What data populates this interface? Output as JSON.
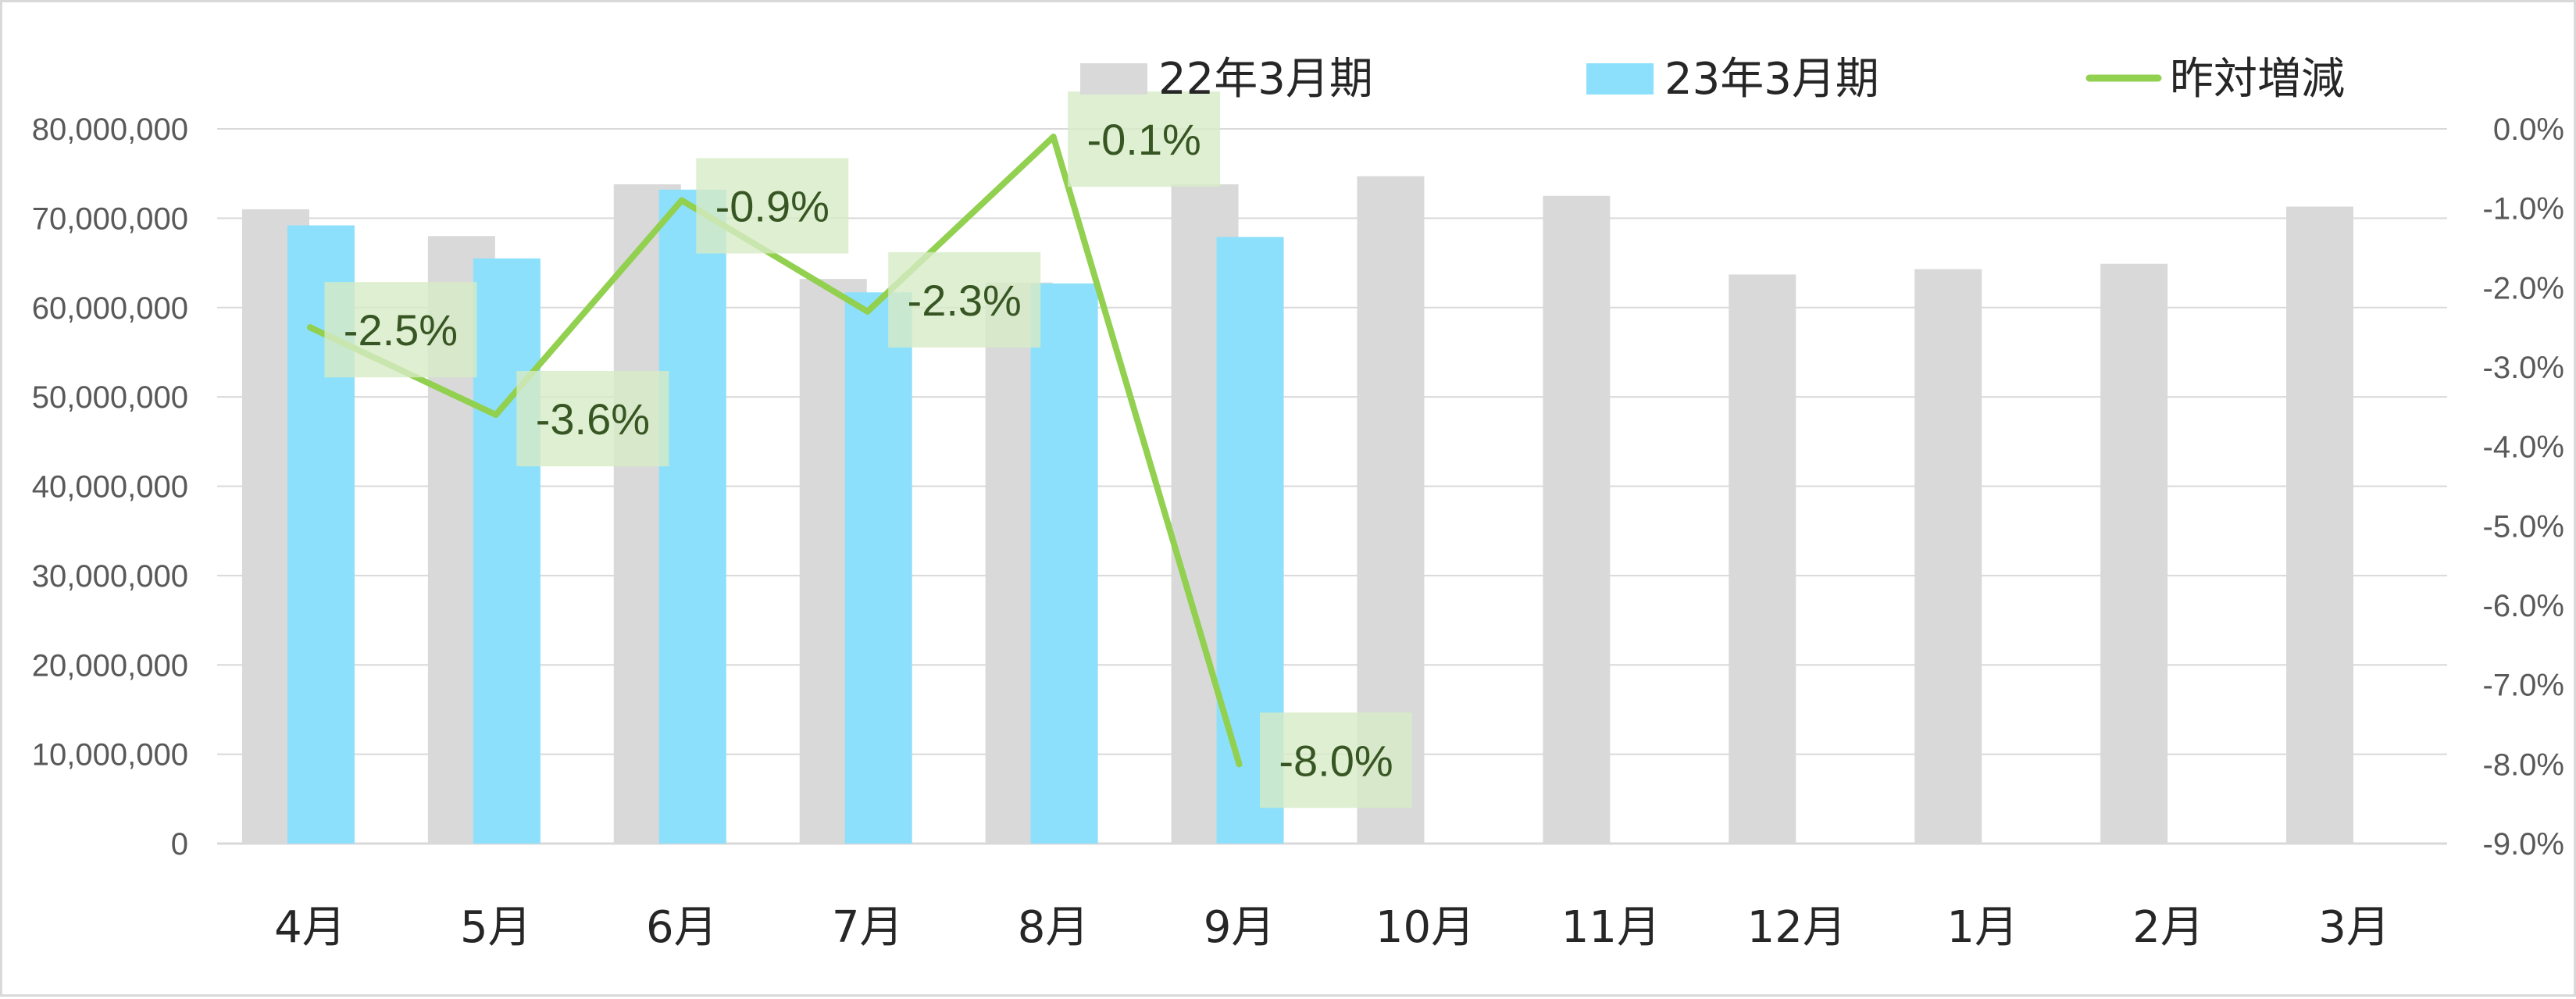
{
  "chart_data": {
    "type": "bar",
    "categories": [
      "4月",
      "5月",
      "6月",
      "7月",
      "8月",
      "9月",
      "10月",
      "11月",
      "12月",
      "1月",
      "2月",
      "3月"
    ],
    "series": [
      {
        "name": "22年3月期",
        "type": "bar",
        "axis": "left",
        "color": "#d9d9d9",
        "values": [
          71000000,
          68000000,
          73800000,
          63200000,
          62800000,
          73800000,
          74700000,
          72500000,
          63700000,
          64300000,
          64900000,
          71300000
        ]
      },
      {
        "name": "23年3月期",
        "type": "bar",
        "axis": "left",
        "color": "#8de0fb",
        "values": [
          69200000,
          65500000,
          73200000,
          61700000,
          62700000,
          67900000,
          null,
          null,
          null,
          null,
          null,
          null
        ]
      },
      {
        "name": "昨対増減",
        "type": "line",
        "axis": "right",
        "color": "#92d050",
        "values": [
          -2.5,
          -3.6,
          -0.9,
          -2.3,
          -0.1,
          -8.0,
          null,
          null,
          null,
          null,
          null,
          null
        ],
        "labels": [
          "-2.5%",
          "-3.6%",
          "-0.9%",
          "-2.3%",
          "-0.1%",
          "-8.0%"
        ]
      }
    ],
    "y_left": {
      "min": 0,
      "max": 80000000,
      "ticks": [
        "0",
        "10,000,000",
        "20,000,000",
        "30,000,000",
        "40,000,000",
        "50,000,000",
        "60,000,000",
        "70,000,000",
        "80,000,000"
      ]
    },
    "y_right": {
      "min": -9.0,
      "max": 0.0,
      "ticks": [
        "0.0%",
        "-1.0%",
        "-2.0%",
        "-3.0%",
        "-4.0%",
        "-5.0%",
        "-6.0%",
        "-7.0%",
        "-8.0%",
        "-9.0%"
      ]
    },
    "legend_position": "top-right",
    "grid": true,
    "colors": {
      "gridline": "#d9d9d9",
      "label_box": "#d7ebc5"
    }
  }
}
